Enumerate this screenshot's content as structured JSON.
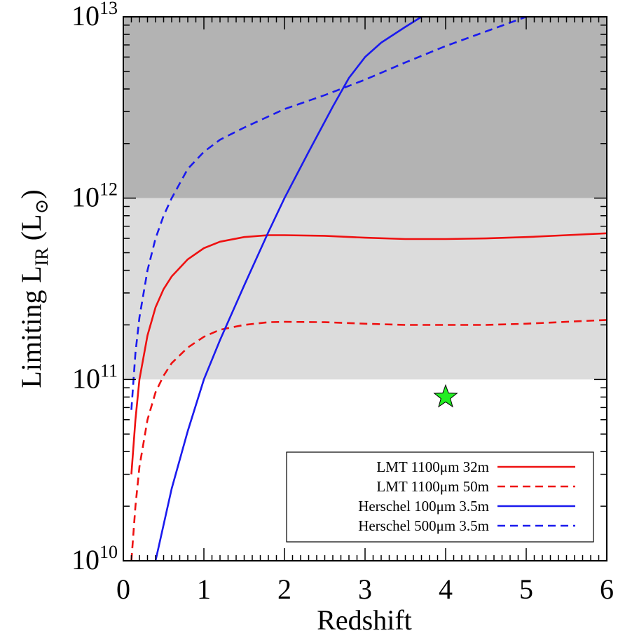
{
  "chart_data": {
    "type": "line",
    "xlabel": "Redshift",
    "ylabel": "Limiting L",
    "ylabel_sub": "IR",
    "ylabel_unit_open": " (L",
    "ylabel_unit_close": ")",
    "xlim": [
      0,
      6
    ],
    "ylim": [
      10000000000.0,
      10000000000000.0
    ],
    "yscale": "log",
    "grid": false,
    "x_ticks": [
      0,
      1,
      2,
      3,
      4,
      5,
      6
    ],
    "x_tick_labels": [
      "0",
      "1",
      "2",
      "3",
      "4",
      "5",
      "6"
    ],
    "y_ticks": [
      10000000000.0,
      100000000000.0,
      1000000000000.0,
      10000000000000.0
    ],
    "y_tick_bases": [
      "10",
      "10",
      "10",
      "10"
    ],
    "y_tick_exponents": [
      "10",
      "11",
      "12",
      "13"
    ],
    "shaded_bands": [
      {
        "ymin": 1000000000000.0,
        "ymax": 10000000000000.0,
        "color": "#b3b3b3"
      },
      {
        "ymin": 100000000000.0,
        "ymax": 1000000000000.0,
        "color": "#dcdcdc"
      }
    ],
    "legend_position": "bottom-right",
    "series": [
      {
        "name": "LMT 1100μm 32m",
        "color": "#ee1111",
        "dash": "solid",
        "x": [
          0.1,
          0.15,
          0.2,
          0.3,
          0.4,
          0.5,
          0.6,
          0.8,
          1.0,
          1.2,
          1.5,
          1.8,
          2.0,
          2.5,
          3.0,
          3.5,
          4.0,
          4.5,
          5.0,
          5.5,
          6.0
        ],
        "y": [
          30000000000.0,
          60000000000.0,
          100000000000.0,
          175000000000.0,
          250000000000.0,
          315000000000.0,
          370000000000.0,
          460000000000.0,
          530000000000.0,
          575000000000.0,
          610000000000.0,
          625000000000.0,
          625000000000.0,
          620000000000.0,
          605000000000.0,
          595000000000.0,
          595000000000.0,
          600000000000.0,
          610000000000.0,
          625000000000.0,
          640000000000.0
        ]
      },
      {
        "name": "LMT 1100μm 50m",
        "color": "#ee1111",
        "dash": "dashed",
        "x": [
          0.1,
          0.15,
          0.2,
          0.3,
          0.4,
          0.5,
          0.6,
          0.8,
          1.0,
          1.2,
          1.5,
          1.8,
          2.0,
          2.5,
          3.0,
          3.5,
          4.0,
          4.5,
          5.0,
          5.5,
          6.0
        ],
        "y": [
          10000000000.0,
          20000000000.0,
          33000000000.0,
          60000000000.0,
          85000000000.0,
          105000000000.0,
          123000000000.0,
          150000000000.0,
          172000000000.0,
          188000000000.0,
          200000000000.0,
          207000000000.0,
          208000000000.0,
          207000000000.0,
          203000000000.0,
          200000000000.0,
          200000000000.0,
          200000000000.0,
          203000000000.0,
          208000000000.0,
          213000000000.0
        ]
      },
      {
        "name": "Herschel 100μm 3.5m",
        "color": "#1a1aee",
        "dash": "solid",
        "x": [
          0.4,
          0.6,
          0.8,
          1.0,
          1.2,
          1.5,
          1.8,
          2.0,
          2.3,
          2.6,
          2.8,
          3.0,
          3.2,
          3.5,
          3.7
        ],
        "y": [
          10000000000.0,
          25000000000.0,
          52000000000.0,
          100000000000.0,
          165000000000.0,
          330000000000.0,
          650000000000.0,
          1000000000000.0,
          1800000000000.0,
          3200000000000.0,
          4600000000000.0,
          6000000000000.0,
          7200000000000.0,
          8800000000000.0,
          10000000000000.0
        ]
      },
      {
        "name": "Herschel 500μm 3.5m",
        "color": "#1a1aee",
        "dash": "dashed",
        "x": [
          0.1,
          0.15,
          0.2,
          0.3,
          0.4,
          0.5,
          0.6,
          0.8,
          1.0,
          1.2,
          1.5,
          2.0,
          2.5,
          3.0,
          3.5,
          4.0,
          4.5,
          5.0
        ],
        "y": [
          68000000000.0,
          140000000000.0,
          220000000000.0,
          400000000000.0,
          600000000000.0,
          800000000000.0,
          1000000000000.0,
          1450000000000.0,
          1800000000000.0,
          2100000000000.0,
          2450000000000.0,
          3100000000000.0,
          3700000000000.0,
          4500000000000.0,
          5600000000000.0,
          6900000000000.0,
          8300000000000.0,
          10000000000000.0
        ]
      }
    ],
    "markers": [
      {
        "x": 4.0,
        "y": 80000000000.0,
        "shape": "star",
        "color": "#22ee22"
      }
    ]
  }
}
